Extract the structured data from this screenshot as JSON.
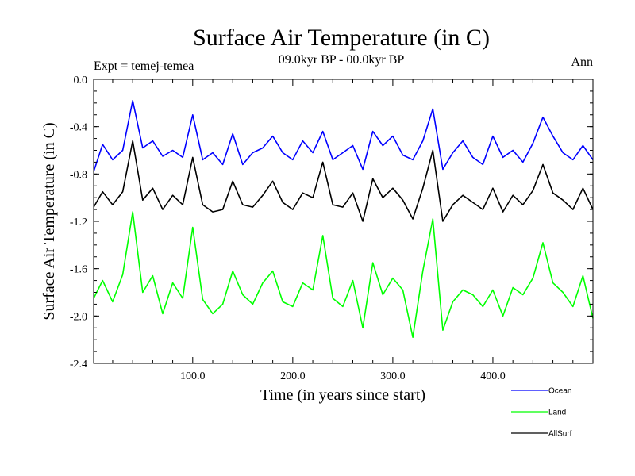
{
  "chart_data": {
    "type": "line",
    "title": "Surface Air Temperature (in C)",
    "subtitle_left": "Expt = temej-temea",
    "subtitle_center": "09.0kyr BP - 00.0kyr BP",
    "subtitle_right": "Ann",
    "xlabel": "Time (in years since start)",
    "ylabel": "Surface Air Temperature (in C)",
    "xlim": [
      1,
      500
    ],
    "ylim": [
      -2.4,
      0.0
    ],
    "x_ticks": [
      100,
      200,
      300,
      400
    ],
    "x_tick_labels": [
      "100.0",
      "200.0",
      "300.0",
      "400.0"
    ],
    "y_ticks": [
      0.0,
      -0.4,
      -0.8,
      -1.2,
      -1.6,
      -2.0,
      -2.4
    ],
    "y_tick_labels": [
      "0.0",
      "-0.4",
      "-0.8",
      "-1.2",
      "-1.6",
      "-2.0",
      "-2.4"
    ],
    "legend_position": "bottom-right, outside plot",
    "x": [
      1,
      10,
      20,
      30,
      40,
      50,
      60,
      70,
      80,
      90,
      100,
      110,
      120,
      130,
      140,
      150,
      160,
      170,
      180,
      190,
      200,
      210,
      220,
      230,
      240,
      250,
      260,
      270,
      280,
      290,
      300,
      310,
      320,
      330,
      340,
      350,
      360,
      370,
      380,
      390,
      400,
      410,
      420,
      430,
      440,
      450,
      460,
      470,
      480,
      490,
      500
    ],
    "series": [
      {
        "name": "Ocean",
        "color": "#0000ff",
        "values": [
          -0.78,
          -0.55,
          -0.68,
          -0.6,
          -0.18,
          -0.58,
          -0.52,
          -0.65,
          -0.6,
          -0.66,
          -0.3,
          -0.68,
          -0.62,
          -0.72,
          -0.46,
          -0.72,
          -0.62,
          -0.58,
          -0.48,
          -0.62,
          -0.68,
          -0.52,
          -0.62,
          -0.44,
          -0.68,
          -0.62,
          -0.56,
          -0.76,
          -0.44,
          -0.56,
          -0.48,
          -0.64,
          -0.68,
          -0.52,
          -0.25,
          -0.76,
          -0.62,
          -0.52,
          -0.66,
          -0.72,
          -0.48,
          -0.66,
          -0.6,
          -0.7,
          -0.54,
          -0.32,
          -0.48,
          -0.62,
          -0.68,
          -0.56,
          -0.68
        ]
      },
      {
        "name": "Land",
        "color": "#00ff00",
        "values": [
          -1.85,
          -1.7,
          -1.88,
          -1.65,
          -1.12,
          -1.8,
          -1.66,
          -1.98,
          -1.72,
          -1.85,
          -1.25,
          -1.86,
          -1.98,
          -1.9,
          -1.62,
          -1.82,
          -1.9,
          -1.72,
          -1.62,
          -1.88,
          -1.92,
          -1.72,
          -1.78,
          -1.32,
          -1.85,
          -1.92,
          -1.7,
          -2.1,
          -1.55,
          -1.82,
          -1.68,
          -1.78,
          -2.18,
          -1.62,
          -1.18,
          -2.12,
          -1.88,
          -1.78,
          -1.82,
          -1.92,
          -1.78,
          -2.0,
          -1.76,
          -1.82,
          -1.68,
          -1.38,
          -1.72,
          -1.8,
          -1.92,
          -1.66,
          -2.02
        ]
      },
      {
        "name": "AllSurf",
        "color": "#000000",
        "values": [
          -1.08,
          -0.95,
          -1.06,
          -0.95,
          -0.52,
          -1.02,
          -0.92,
          -1.1,
          -0.98,
          -1.06,
          -0.66,
          -1.06,
          -1.12,
          -1.1,
          -0.86,
          -1.06,
          -1.08,
          -0.98,
          -0.86,
          -1.04,
          -1.1,
          -0.96,
          -1.0,
          -0.7,
          -1.06,
          -1.08,
          -0.96,
          -1.2,
          -0.84,
          -1.0,
          -0.92,
          -1.02,
          -1.18,
          -0.92,
          -0.6,
          -1.2,
          -1.06,
          -0.98,
          -1.04,
          -1.1,
          -0.92,
          -1.12,
          -0.98,
          -1.06,
          -0.94,
          -0.72,
          -0.96,
          -1.02,
          -1.1,
          -0.92,
          -1.1
        ]
      }
    ]
  }
}
